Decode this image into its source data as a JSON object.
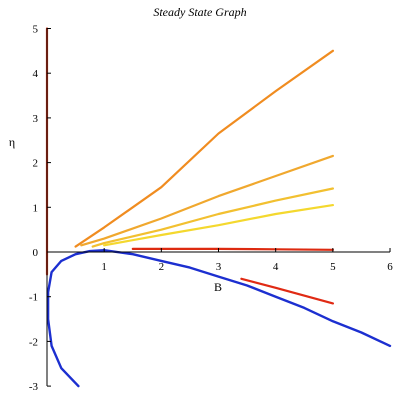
{
  "chart_data": {
    "type": "line",
    "title": "Steady State Graph",
    "xlabel": "B",
    "ylabel": "η",
    "xlim": [
      0,
      6
    ],
    "ylim": [
      -3,
      5
    ],
    "xticks": [
      "1",
      "2",
      "3",
      "4",
      "5",
      "6"
    ],
    "yticks": [
      "-3",
      "-2",
      "-1",
      "0",
      "1",
      "2",
      "3",
      "4",
      "5"
    ],
    "grid": false,
    "series": [
      {
        "color": "#d33c22",
        "x": [
          0,
          0,
          0,
          0
        ],
        "y": [
          -0.5,
          0.0,
          2.0,
          5.0
        ]
      },
      {
        "color": "#f08c20",
        "x": [
          0.5,
          1,
          2,
          3,
          4,
          5
        ],
        "y": [
          0.12,
          0.55,
          1.45,
          2.65,
          3.6,
          4.5
        ]
      },
      {
        "color": "#f0a82e",
        "x": [
          0.6,
          1,
          2,
          3,
          4,
          5
        ],
        "y": [
          0.15,
          0.3,
          0.75,
          1.25,
          1.7,
          2.15
        ]
      },
      {
        "color": "#f2c030",
        "x": [
          0.8,
          1,
          2,
          3,
          4,
          5
        ],
        "y": [
          0.12,
          0.2,
          0.5,
          0.85,
          1.15,
          1.42
        ]
      },
      {
        "color": "#f4d82e",
        "x": [
          1,
          2,
          3,
          4,
          5
        ],
        "y": [
          0.15,
          0.38,
          0.6,
          0.85,
          1.05
        ]
      },
      {
        "color": "#dd2a10",
        "x": [
          1.5,
          3,
          4,
          5
        ],
        "y": [
          0.07,
          0.07,
          0.06,
          0.05
        ]
      },
      {
        "color": "#e02a14",
        "x": [
          3.4,
          4,
          5
        ],
        "y": [
          -0.6,
          -0.8,
          -1.15
        ]
      },
      {
        "color": "#1c2fd0",
        "x": [
          0.55,
          0.25,
          0.08,
          0.02,
          0.02,
          0.08,
          0.25,
          0.5,
          0.75,
          1
        ],
        "y": [
          -3.0,
          -2.6,
          -2.1,
          -1.5,
          -0.9,
          -0.45,
          -0.2,
          -0.05,
          0.02,
          0.04
        ]
      },
      {
        "color": "#1c2fd0",
        "x": [
          1,
          1.5,
          2,
          2.5,
          3,
          3.5,
          4,
          4.5,
          5,
          5.5,
          6
        ],
        "y": [
          0.04,
          -0.05,
          -0.2,
          -0.35,
          -0.55,
          -0.75,
          -1.0,
          -1.25,
          -1.55,
          -1.8,
          -2.1
        ]
      }
    ]
  }
}
